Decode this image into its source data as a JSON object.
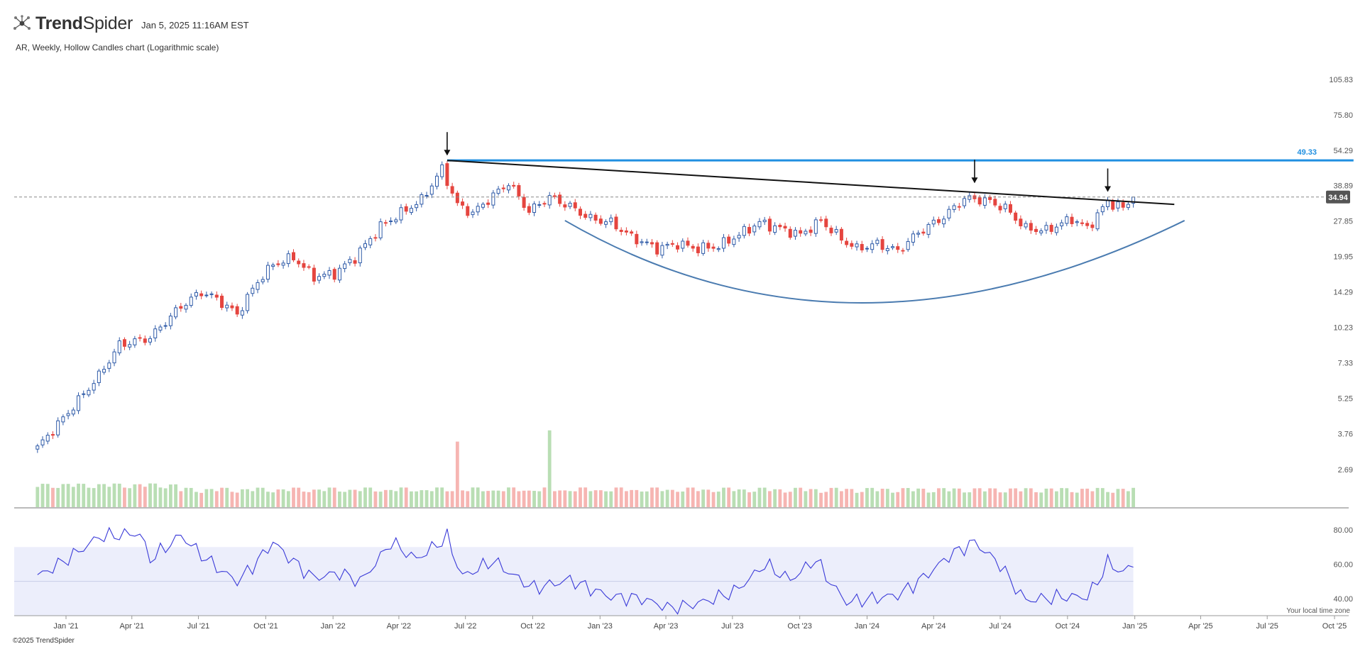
{
  "header": {
    "brand_bold": "Trend",
    "brand_light": "Spider",
    "timestamp": "Jan 5, 2025 11:16AM EST",
    "logo_icon": "trendspider-logo-icon"
  },
  "chart_title": "AR, Weekly, Hollow Candles chart (Logarithmic scale)",
  "footer": "©2025 TrendSpider",
  "timezone_note": "Your local time zone",
  "colors": {
    "up": "#2f5ba8",
    "down": "#e5453f",
    "volume_up": "#b9deb4",
    "volume_down": "#f6b5b2",
    "rsi_line": "#3a3ad8",
    "rsi_band": "#eceefb",
    "resistance": "#1f8fe0",
    "trendline": "#111111",
    "cup_curve": "#4a7bb0",
    "price_label_bg": "#555555"
  },
  "chart_data": {
    "type": "candlestick",
    "scale": "log",
    "symbol": "AR",
    "timeframe": "Weekly",
    "x_ticks": [
      "Jan '21",
      "Apr '21",
      "Jul '21",
      "Oct '21",
      "Jan '22",
      "Apr '22",
      "Jul '22",
      "Oct '22",
      "Jan '23",
      "Apr '23",
      "Jul '23",
      "Oct '23",
      "Jan '24",
      "Apr '24",
      "Jul '24",
      "Oct '24",
      "Jan '25",
      "Apr '25",
      "Jul '25",
      "Oct '25"
    ],
    "y_ticks": [
      "105.83",
      "75.80",
      "54.29",
      "38.89",
      "27.85",
      "19.95",
      "14.29",
      "10.23",
      "7.33",
      "5.25",
      "3.76",
      "2.69"
    ],
    "ylim": [
      2.35,
      120
    ],
    "last_price": 34.94,
    "resistance_level": 49.33,
    "close_keypoints": [
      {
        "date": "2020-11-23",
        "close": 3.3
      },
      {
        "date": "2021-01-04",
        "close": 4.6
      },
      {
        "date": "2021-02-15",
        "close": 6.5
      },
      {
        "date": "2021-03-15",
        "close": 8.7
      },
      {
        "date": "2021-04-26",
        "close": 9.3
      },
      {
        "date": "2021-06-07",
        "close": 12.5
      },
      {
        "date": "2021-07-05",
        "close": 14.3
      },
      {
        "date": "2021-07-26",
        "close": 13.4
      },
      {
        "date": "2021-08-23",
        "close": 11.6
      },
      {
        "date": "2021-09-20",
        "close": 15.8
      },
      {
        "date": "2021-10-11",
        "close": 18.5
      },
      {
        "date": "2021-11-08",
        "close": 19.8
      },
      {
        "date": "2021-12-06",
        "close": 16.5
      },
      {
        "date": "2022-01-03",
        "close": 17.0
      },
      {
        "date": "2022-01-31",
        "close": 19.8
      },
      {
        "date": "2022-03-07",
        "close": 26.5
      },
      {
        "date": "2022-04-11",
        "close": 31.0
      },
      {
        "date": "2022-05-02",
        "close": 34.0
      },
      {
        "date": "2022-05-30",
        "close": 45.5
      },
      {
        "date": "2022-06-20",
        "close": 32.5
      },
      {
        "date": "2022-07-11",
        "close": 30.0
      },
      {
        "date": "2022-08-01",
        "close": 34.0
      },
      {
        "date": "2022-08-29",
        "close": 40.0
      },
      {
        "date": "2022-09-26",
        "close": 30.5
      },
      {
        "date": "2022-10-24",
        "close": 35.0
      },
      {
        "date": "2022-11-21",
        "close": 32.0
      },
      {
        "date": "2022-12-19",
        "close": 28.5
      },
      {
        "date": "2023-01-16",
        "close": 27.5
      },
      {
        "date": "2023-02-13",
        "close": 24.0
      },
      {
        "date": "2023-03-20",
        "close": 21.5
      },
      {
        "date": "2023-04-17",
        "close": 22.5
      },
      {
        "date": "2023-05-15",
        "close": 21.5
      },
      {
        "date": "2023-06-12",
        "close": 22.0
      },
      {
        "date": "2023-07-10",
        "close": 24.5
      },
      {
        "date": "2023-08-07",
        "close": 27.5
      },
      {
        "date": "2023-09-04",
        "close": 26.0
      },
      {
        "date": "2023-10-02",
        "close": 24.5
      },
      {
        "date": "2023-10-30",
        "close": 28.0
      },
      {
        "date": "2023-11-27",
        "close": 23.5
      },
      {
        "date": "2023-12-18",
        "close": 21.5
      },
      {
        "date": "2024-01-15",
        "close": 22.5
      },
      {
        "date": "2024-02-12",
        "close": 21.0
      },
      {
        "date": "2024-03-11",
        "close": 25.0
      },
      {
        "date": "2024-04-15",
        "close": 29.0
      },
      {
        "date": "2024-05-13",
        "close": 34.5
      },
      {
        "date": "2024-06-10",
        "close": 34.0
      },
      {
        "date": "2024-07-08",
        "close": 31.5
      },
      {
        "date": "2024-08-05",
        "close": 26.0
      },
      {
        "date": "2024-09-02",
        "close": 25.5
      },
      {
        "date": "2024-10-07",
        "close": 28.5
      },
      {
        "date": "2024-10-28",
        "close": 26.0
      },
      {
        "date": "2024-11-25",
        "close": 33.5
      },
      {
        "date": "2024-12-16",
        "close": 31.5
      },
      {
        "date": "2025-01-03",
        "close": 34.94
      }
    ],
    "rsi": {
      "ylim": [
        30,
        85
      ],
      "y_ticks": [
        "80.00",
        "60.00",
        "40.00"
      ],
      "band": [
        30,
        70
      ],
      "mid": 50,
      "keypoints": [
        {
          "date": "2020-11-23",
          "value": 53
        },
        {
          "date": "2021-02-15",
          "value": 76
        },
        {
          "date": "2021-04-12",
          "value": 78
        },
        {
          "date": "2021-04-26",
          "value": 63
        },
        {
          "date": "2021-06-07",
          "value": 77
        },
        {
          "date": "2021-07-12",
          "value": 63
        },
        {
          "date": "2021-08-23",
          "value": 50
        },
        {
          "date": "2021-10-11",
          "value": 73
        },
        {
          "date": "2021-12-06",
          "value": 52
        },
        {
          "date": "2022-01-10",
          "value": 55
        },
        {
          "date": "2022-02-07",
          "value": 50
        },
        {
          "date": "2022-03-21",
          "value": 73
        },
        {
          "date": "2022-04-25",
          "value": 63
        },
        {
          "date": "2022-06-06",
          "value": 76
        },
        {
          "date": "2022-06-27",
          "value": 53
        },
        {
          "date": "2022-08-08",
          "value": 62
        },
        {
          "date": "2022-10-03",
          "value": 46
        },
        {
          "date": "2022-11-21",
          "value": 51
        },
        {
          "date": "2023-01-16",
          "value": 41
        },
        {
          "date": "2023-02-27",
          "value": 40
        },
        {
          "date": "2023-04-10",
          "value": 34
        },
        {
          "date": "2023-05-22",
          "value": 38
        },
        {
          "date": "2023-07-03",
          "value": 44
        },
        {
          "date": "2023-08-14",
          "value": 60
        },
        {
          "date": "2023-09-18",
          "value": 51
        },
        {
          "date": "2023-10-23",
          "value": 63
        },
        {
          "date": "2023-12-04",
          "value": 38
        },
        {
          "date": "2024-02-12",
          "value": 42
        },
        {
          "date": "2024-04-22",
          "value": 65
        },
        {
          "date": "2024-05-27",
          "value": 73
        },
        {
          "date": "2024-07-01",
          "value": 60
        },
        {
          "date": "2024-08-05",
          "value": 39
        },
        {
          "date": "2024-09-23",
          "value": 41
        },
        {
          "date": "2024-10-28",
          "value": 41
        },
        {
          "date": "2024-11-25",
          "value": 61
        },
        {
          "date": "2024-12-16",
          "value": 55
        },
        {
          "date": "2025-01-03",
          "value": 62
        }
      ]
    },
    "volume_spikes": [
      {
        "date": "2022-10-24",
        "relative": 2.05
      },
      {
        "date": "2022-06-20",
        "relative": 1.75
      }
    ],
    "annotations": {
      "resistance_line": {
        "value": 49.33,
        "from": "2022-06-06",
        "to": "2025-10-27"
      },
      "trendline": {
        "from": {
          "date": "2022-06-06",
          "value": 49.3
        },
        "to": {
          "date": "2025-02-24",
          "value": 32.6
        }
      },
      "arrows": [
        {
          "date": "2022-06-06",
          "points_to": 49.3
        },
        {
          "date": "2024-05-27",
          "points_to": 38.0
        },
        {
          "date": "2024-11-25",
          "points_to": 35.0
        }
      ],
      "cup_curve": {
        "start": {
          "date": "2022-11-14",
          "value": 28.0
        },
        "bottom": {
          "date": "2023-12-25",
          "value": 12.9
        },
        "end": {
          "date": "2025-03-10",
          "value": 28.0
        }
      }
    }
  }
}
